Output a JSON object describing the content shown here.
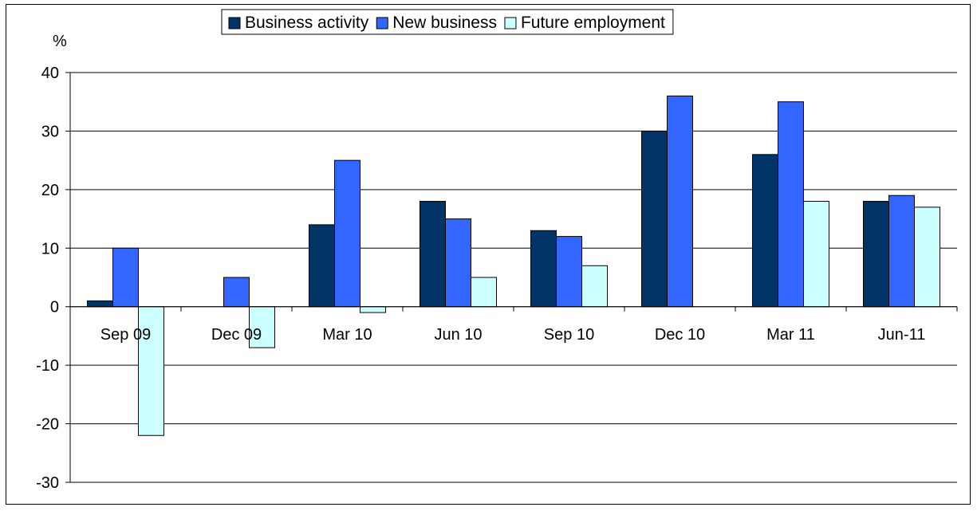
{
  "chart_data": {
    "type": "bar",
    "ylabel": "%",
    "ylim": [
      -30,
      40
    ],
    "yticks": [
      40,
      30,
      20,
      10,
      0,
      -10,
      -20,
      -30
    ],
    "categories": [
      "Sep 09",
      "Dec 09",
      "Mar 10",
      "Jun 10",
      "Sep 10",
      "Dec 10",
      "Mar 11",
      "Jun-11"
    ],
    "series": [
      {
        "name": "Business activity",
        "color": "#003366",
        "values": [
          1,
          0,
          14,
          18,
          13,
          30,
          26,
          18
        ]
      },
      {
        "name": "New business",
        "color": "#3366FF",
        "values": [
          10,
          5,
          25,
          15,
          12,
          36,
          35,
          19
        ]
      },
      {
        "name": "Future employment",
        "color": "#CCFFFF",
        "values": [
          -22,
          -7,
          -1,
          5,
          7,
          0,
          18,
          17
        ]
      }
    ],
    "legend_position": "top-center",
    "grid": true
  }
}
